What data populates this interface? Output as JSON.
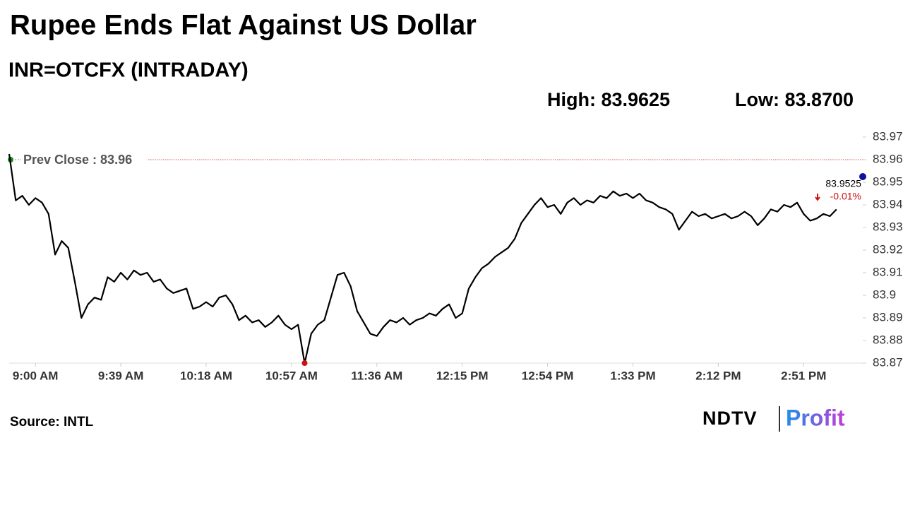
{
  "chart_data": {
    "type": "line",
    "title": "Rupee Ends Flat Against US Dollar",
    "subtitle": "INR=OTCFX (INTRADAY)",
    "high_label": "High: 83.9625",
    "low_label": "Low: 83.8700",
    "prev_close_label": "Prev Close : 83.96",
    "prev_close": 83.96,
    "prev_close_color": "#e05050",
    "last": 83.9525,
    "last_label": "83.9525",
    "change_label": "-0.01%",
    "source": "Source: INTL",
    "logo": [
      "NDTV",
      "Profit"
    ],
    "color": "#000000",
    "categories": [
      null,
      null,
      null,
      null,
      "9:00 AM",
      null,
      null,
      null,
      null,
      null,
      null,
      null,
      null,
      null,
      null,
      null,
      null,
      "9:39 AM",
      null,
      null,
      null,
      null,
      null,
      null,
      null,
      null,
      null,
      null,
      null,
      null,
      "10:18 AM",
      null,
      null,
      null,
      null,
      null,
      null,
      null,
      null,
      null,
      null,
      null,
      null,
      "10:57 AM",
      null,
      null,
      null,
      null,
      null,
      null,
      null,
      null,
      null,
      null,
      null,
      null,
      "11:36 AM",
      null,
      null,
      null,
      null,
      null,
      null,
      null,
      null,
      null,
      null,
      null,
      null,
      "12:15 PM",
      null,
      null,
      null,
      null,
      null,
      null,
      null,
      null,
      null,
      null,
      null,
      null,
      "12:54 PM",
      null,
      null,
      null,
      null,
      null,
      null,
      null,
      null,
      null,
      null,
      null,
      null,
      "1:33 PM",
      null,
      null,
      null,
      null,
      null,
      null,
      null,
      null,
      null,
      null,
      null,
      null,
      "2:12 PM",
      null,
      null,
      null,
      null,
      null,
      null,
      null,
      null,
      null,
      null,
      null,
      null,
      "2:51 PM",
      null,
      null,
      null,
      null,
      null,
      null,
      null,
      null,
      null
    ],
    "values": [
      83.9625,
      83.942,
      83.944,
      83.94,
      83.943,
      83.941,
      83.936,
      83.918,
      83.924,
      83.921,
      83.906,
      83.89,
      83.896,
      83.899,
      83.898,
      83.908,
      83.906,
      83.91,
      83.907,
      83.911,
      83.909,
      83.91,
      83.906,
      83.907,
      83.903,
      83.901,
      83.902,
      83.903,
      83.894,
      83.895,
      83.897,
      83.895,
      83.899,
      83.9,
      83.896,
      83.889,
      83.891,
      83.888,
      83.889,
      83.886,
      83.888,
      83.891,
      83.887,
      83.885,
      83.887,
      83.87,
      83.883,
      83.887,
      83.889,
      83.899,
      83.909,
      83.91,
      83.904,
      83.893,
      83.888,
      83.883,
      83.882,
      83.886,
      83.889,
      83.888,
      83.89,
      83.887,
      83.889,
      83.89,
      83.892,
      83.891,
      83.894,
      83.896,
      83.89,
      83.892,
      83.903,
      83.908,
      83.912,
      83.914,
      83.917,
      83.919,
      83.921,
      83.925,
      83.932,
      83.936,
      83.94,
      83.943,
      83.939,
      83.94,
      83.936,
      83.941,
      83.943,
      83.94,
      83.942,
      83.941,
      83.944,
      83.943,
      83.946,
      83.944,
      83.945,
      83.943,
      83.945,
      83.942,
      83.941,
      83.939,
      83.938,
      83.936,
      83.929,
      83.933,
      83.937,
      83.935,
      83.936,
      83.934,
      83.935,
      83.936,
      83.934,
      83.935,
      83.937,
      83.935,
      83.931,
      83.934,
      83.938,
      83.937,
      83.94,
      83.939,
      83.941,
      83.936,
      83.933,
      83.934,
      83.936,
      83.935,
      83.938,
      null,
      null,
      null,
      null
    ],
    "ylim": [
      83.87,
      83.97
    ],
    "yticks": [
      83.87,
      83.88,
      83.89,
      83.9,
      83.91,
      83.92,
      83.93,
      83.94,
      83.95,
      83.96,
      83.97
    ]
  }
}
